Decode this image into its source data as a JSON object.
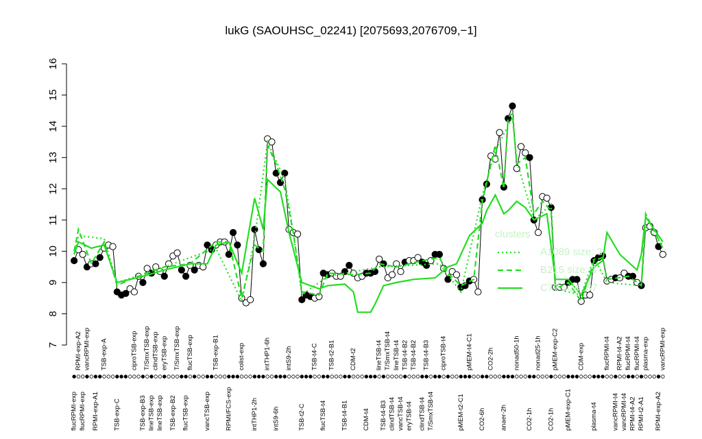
{
  "chart_data": {
    "type": "line",
    "title": "lukG (SAOUHSC_02241) [2075693,2076709,−1]",
    "ylim": [
      7,
      16
    ],
    "yticks": [
      7,
      8,
      9,
      10,
      11,
      12,
      13,
      14,
      15,
      16
    ],
    "color": "#000000",
    "categories": [
      "flucRPMI-exp",
      "RPMI-exp-A2",
      "flucRPMI-exp",
      "vancRPMI-exp",
      null,
      "RPMI-exp-A1",
      null,
      "TSB-exp-A",
      null,
      null,
      "TSB-exp-C",
      null,
      null,
      null,
      "ciproTSB-exp",
      null,
      "TSB-exp-B3",
      "T/SmxTSB-exp",
      "lineTSB-exp",
      "clindTSB-exp",
      "lineTSB-exp",
      "eryTSB-exp",
      null,
      "TSB-exp-B2",
      "T/SmxTSB-exp",
      null,
      "flucTSB-exp",
      "flucTSB-exp",
      null,
      null,
      null,
      "vancTSB-exp",
      null,
      "TSB-exp-B1",
      null,
      null,
      "RPMI/FCS-exp",
      null,
      null,
      "colist-exp",
      null,
      null,
      "intTHP1-2h",
      null,
      null,
      "intTHP1-6h",
      null,
      "intS9-6h",
      null,
      null,
      "intS9-2h",
      null,
      null,
      "TSB-t2-C",
      null,
      null,
      "TSB-t4-C",
      null,
      "flucTSB-t4",
      null,
      "TSB-t2-B1",
      null,
      null,
      "TSB-t4-B1",
      null,
      "CDM-t2",
      null,
      null,
      "CDM-t4",
      null,
      null,
      "lineTSB-t4",
      "TSB-t4-B3",
      "T/SmxTSB-t4",
      "clindTSB-t4",
      "lineTSB-t4",
      "vancTSB-t4",
      "TSB-t4-B2",
      "eryTSB-t4",
      "TSB-t4-B2",
      null,
      "clindTSB-t4",
      "TSB-t4-B3",
      "T/SmxTSB-t4",
      null,
      null,
      "ciproTSB-t4",
      null,
      null,
      null,
      "pMEM-t2-C1",
      null,
      "pMEM-t4-C1",
      null,
      null,
      "CO2-6h",
      null,
      "CO2-2h",
      null,
      null,
      "anaer-2h",
      null,
      null,
      "nonad50-1h",
      null,
      null,
      "CO2-1h",
      null,
      "nonad25-1h",
      null,
      null,
      "CO2-1h",
      "pMEM-exp-C2",
      null,
      null,
      "pMEM-exp-C1",
      null,
      null,
      "CDM-exp",
      null,
      null,
      "plasma-t4",
      null,
      null,
      "flucRPMI-t4",
      null,
      "vancRPMI-t4",
      "RPMI-t4-A2",
      "vancRPMI-t4",
      "flucRPMI-t4",
      "RPMI-t4-A2",
      "flucRPMI-t4",
      "RPMI-t2-A1",
      "plasma-exp",
      null,
      null,
      "RPMI-exp-A2",
      "vancRPMI-exp"
    ],
    "values": [
      9.7,
      10.05,
      9.9,
      9.5,
      9.6,
      9.6,
      9.8,
      10.1,
      10.2,
      10.15,
      8.7,
      8.6,
      8.65,
      8.8,
      8.7,
      9.2,
      9.0,
      9.45,
      9.3,
      9.5,
      9.35,
      9.2,
      9.6,
      9.85,
      9.95,
      9.4,
      9.2,
      9.55,
      9.4,
      9.55,
      9.5,
      10.2,
      10.05,
      10.2,
      10.3,
      10.3,
      9.9,
      10.6,
      10.2,
      8.5,
      8.35,
      8.45,
      10.7,
      10.05,
      9.6,
      13.6,
      13.5,
      12.5,
      12.2,
      12.5,
      10.7,
      10.6,
      10.55,
      8.45,
      8.6,
      8.55,
      8.5,
      8.55,
      9.3,
      9.25,
      9.3,
      9.2,
      9.2,
      9.35,
      9.55,
      9.3,
      9.15,
      9.2,
      9.3,
      9.3,
      9.35,
      9.75,
      9.6,
      9.15,
      9.25,
      9.6,
      9.35,
      9.65,
      9.7,
      9.7,
      9.8,
      9.65,
      9.55,
      9.7,
      9.9,
      9.9,
      9.45,
      9.1,
      9.35,
      9.25,
      8.85,
      8.9,
      9.05,
      9.1,
      8.7,
      11.65,
      12.15,
      13.05,
      12.95,
      13.8,
      12.05,
      14.25,
      14.65,
      12.65,
      13.35,
      13.15,
      13.0,
      11.0,
      10.6,
      11.75,
      11.7,
      11.4,
      8.85,
      8.85,
      8.85,
      9.0,
      9.1,
      9.1,
      8.4,
      8.6,
      8.6,
      9.7,
      9.8,
      9.85,
      9.05,
      9.1,
      9.15,
      9.15,
      9.3,
      9.2,
      9.2,
      9.0,
      8.9,
      10.75,
      10.8,
      10.6,
      10.15,
      9.9
    ],
    "filled": [
      true,
      false,
      false,
      true,
      false,
      true,
      true,
      false,
      false,
      false,
      true,
      true,
      true,
      false,
      false,
      false,
      true,
      false,
      true,
      false,
      false,
      true,
      false,
      false,
      false,
      true,
      true,
      false,
      true,
      false,
      false,
      true,
      true,
      false,
      false,
      false,
      true,
      true,
      true,
      false,
      false,
      false,
      true,
      true,
      true,
      false,
      false,
      true,
      true,
      true,
      false,
      false,
      false,
      true,
      true,
      true,
      false,
      false,
      true,
      true,
      false,
      false,
      false,
      true,
      true,
      false,
      false,
      false,
      true,
      true,
      true,
      false,
      true,
      false,
      false,
      false,
      false,
      true,
      false,
      false,
      false,
      true,
      true,
      false,
      true,
      true,
      false,
      true,
      false,
      false,
      true,
      true,
      true,
      false,
      false,
      true,
      true,
      false,
      false,
      false,
      true,
      true,
      true,
      false,
      false,
      false,
      true,
      true,
      false,
      false,
      false,
      true,
      false,
      false,
      false,
      true,
      true,
      true,
      false,
      false,
      false,
      true,
      true,
      true,
      false,
      false,
      true,
      false,
      false,
      true,
      true,
      false,
      true,
      false,
      false,
      false,
      true,
      false
    ],
    "legend_title": "clusters",
    "clusters": [
      {
        "name": "A1089 size: 3",
        "color": "#22dd22",
        "style": "dotted",
        "x": [
          1,
          2,
          8,
          11,
          22,
          34,
          40,
          43,
          46,
          50,
          52,
          54,
          60,
          72,
          86,
          91,
          96,
          99,
          103,
          104,
          108,
          112,
          113,
          119,
          122,
          125,
          133,
          134,
          138
        ],
        "values": [
          9.9,
          10.5,
          10.4,
          9.0,
          9.5,
          10.1,
          8.4,
          10.4,
          13.5,
          12.3,
          10.6,
          8.6,
          9.2,
          9.5,
          9.6,
          8.7,
          11.8,
          13.2,
          14.3,
          12.9,
          11.0,
          11.5,
          8.8,
          8.6,
          9.8,
          9.0,
          8.9,
          10.8,
          10.2
        ]
      },
      {
        "name": "B215 size: 3",
        "color": "#22dd22",
        "style": "dashed",
        "x": [
          1,
          2,
          5,
          8,
          11,
          14,
          22,
          28,
          34,
          37,
          40,
          43,
          45,
          46,
          48,
          50,
          52,
          54,
          58,
          60,
          66,
          70,
          72,
          76,
          82,
          86,
          88,
          91,
          94,
          96,
          99,
          101,
          102,
          103,
          104,
          106,
          108,
          110,
          112,
          113,
          116,
          119,
          122,
          124,
          125,
          130,
          133,
          134,
          138
        ],
        "values": [
          10.0,
          10.7,
          9.6,
          10.3,
          8.9,
          9.1,
          9.5,
          9.6,
          10.3,
          10.3,
          8.5,
          10.2,
          10.0,
          13.4,
          12.8,
          12.0,
          10.6,
          8.7,
          8.6,
          9.3,
          9.25,
          9.3,
          9.6,
          9.5,
          9.7,
          9.8,
          9.3,
          8.9,
          9.1,
          11.6,
          13.4,
          12.0,
          14.3,
          14.4,
          12.8,
          13.0,
          11.2,
          11.6,
          11.3,
          8.8,
          9.0,
          8.4,
          9.7,
          9.8,
          9.1,
          9.2,
          8.9,
          11.2,
          10.1
        ]
      },
      {
        "name": "C77 size: 37",
        "color": "#22dd22",
        "style": "solid",
        "x": [
          1,
          2,
          5,
          8,
          11,
          14,
          17,
          22,
          28,
          32,
          34,
          37,
          40,
          43,
          45,
          46,
          49,
          51,
          54,
          58,
          60,
          64,
          66,
          67,
          70,
          71,
          73,
          76,
          80,
          85,
          88,
          90,
          93,
          96,
          97,
          99,
          101,
          102,
          104,
          106,
          108,
          111,
          113,
          116,
          119,
          122,
          124,
          125,
          128,
          132,
          133,
          134,
          138
        ],
        "values": [
          9.9,
          10.3,
          10.1,
          10.2,
          9.0,
          9.1,
          9.2,
          9.4,
          9.6,
          9.6,
          10.2,
          10.3,
          9.3,
          11.7,
          10.7,
          12.3,
          11.9,
          10.6,
          9.0,
          8.8,
          8.9,
          8.95,
          8.7,
          8.05,
          8.05,
          8.3,
          8.9,
          9.0,
          9.1,
          9.15,
          9.5,
          9.6,
          10.5,
          10.9,
          11.3,
          11.8,
          11.2,
          11.3,
          11.6,
          11.4,
          11.0,
          11.2,
          9.1,
          9.1,
          8.6,
          9.5,
          9.7,
          10.6,
          9.9,
          9.4,
          9.9,
          11.1,
          10.3
        ]
      }
    ]
  }
}
